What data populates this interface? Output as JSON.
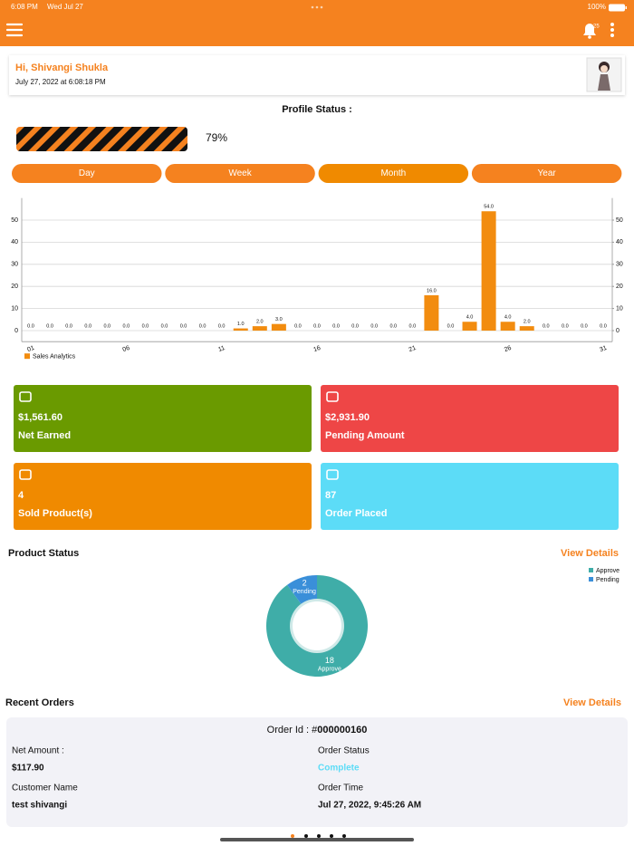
{
  "status_bar": {
    "time": "6:08 PM",
    "date": "Wed Jul 27",
    "battery": "100%"
  },
  "header": {
    "notification_count": "25"
  },
  "greeting": {
    "name": "Hi, Shivangi Shukla",
    "date": "July 27, 2022 at 6:08:18 PM"
  },
  "profile_status": {
    "label": "Profile Status :",
    "value": "79%"
  },
  "tabs": [
    "Day",
    "Week",
    "Month",
    "Year"
  ],
  "chart_data": [
    {
      "type": "bar",
      "categories": [
        "01",
        null,
        null,
        null,
        null,
        "06",
        null,
        null,
        null,
        null,
        "11",
        null,
        null,
        null,
        null,
        "16",
        null,
        null,
        null,
        null,
        "21",
        null,
        null,
        null,
        null,
        "26",
        null,
        null,
        null,
        null,
        "31"
      ],
      "series": [
        {
          "name": "Sales Analytics",
          "color": "#f28c0f",
          "values": [
            0,
            0,
            0,
            0,
            0,
            0,
            0,
            0,
            0,
            0,
            0,
            1,
            2,
            3,
            0,
            0,
            0,
            0,
            0,
            0,
            0,
            16,
            0,
            4,
            54,
            4,
            2,
            0,
            0,
            0,
            0
          ],
          "value_labels": [
            "0.0",
            "0.0",
            "0.0",
            "0.0",
            "0.0",
            "0.0",
            "0.0",
            "0.0",
            "0.0",
            "0.0",
            "0.0",
            "1.0",
            "2.0",
            "3.0",
            "0.0",
            "0.0",
            "0.0",
            "0.0",
            "0.0",
            "0.0",
            "0.0",
            "16.0",
            "0.0",
            "4.0",
            "54.0",
            "4.0",
            "2.0",
            "0.0",
            "0.0",
            "0.0",
            "0.0"
          ]
        }
      ],
      "ylim": [
        -5,
        60
      ],
      "yticks": [
        0,
        10,
        20,
        30,
        40,
        50
      ],
      "y2lim": [
        -5,
        60
      ],
      "y2ticks": [
        0,
        10,
        20,
        30,
        40,
        50
      ],
      "grid": true,
      "legend": "bottom-left"
    },
    {
      "type": "pie",
      "title": "Product Status",
      "link": "View Details",
      "categories": [
        "Approve",
        "Pending"
      ],
      "values": [
        18,
        2
      ],
      "colors": [
        "#3fada8",
        "#3a8fd9"
      ],
      "donut": true,
      "legend": "top-right"
    }
  ],
  "stats": [
    {
      "value": "$1,561.60",
      "label": "Net Earned"
    },
    {
      "value": "$2,931.90",
      "label": "Pending Amount"
    },
    {
      "value": 4,
      "label": "Sold Product(s)"
    },
    {
      "value": 87,
      "label": "Order Placed"
    }
  ],
  "recent_orders": {
    "title": "Recent Orders",
    "link": "View Details",
    "order": {
      "id_label": "Order Id : #",
      "id": "000000160",
      "net_amount_label": "Net Amount :",
      "net_amount": "$117.90",
      "status_label": "Order Status",
      "status": "Complete",
      "customer_label": "Customer Name",
      "customer": "test shivangi",
      "time_label": "Order Time",
      "time": "Jul 27, 2022, 9:45:26 AM"
    }
  }
}
